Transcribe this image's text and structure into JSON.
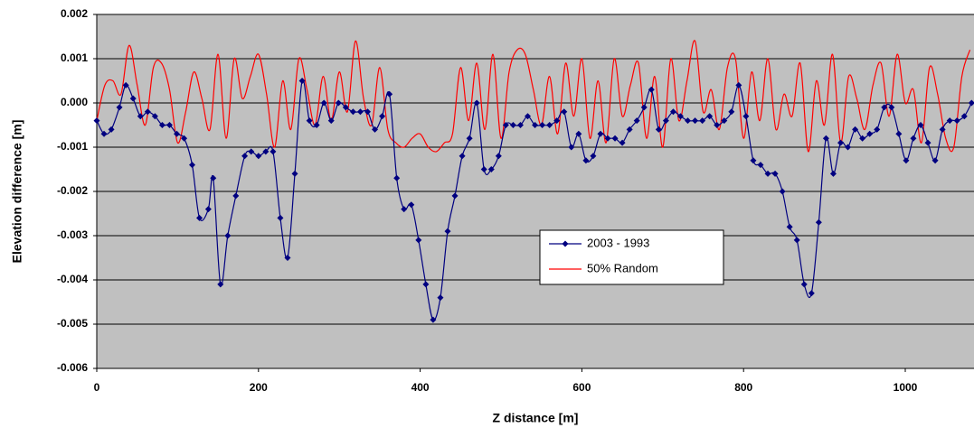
{
  "chart_data": {
    "type": "line",
    "xlabel": "Z distance [m]",
    "ylabel": "Elevation difference [m]",
    "xlim": [
      0,
      1085
    ],
    "xticks": [
      0,
      200,
      400,
      600,
      800,
      1000
    ],
    "ylim": [
      -0.006,
      0.002
    ],
    "yticks": [
      0.002,
      0.001,
      {
        "value": 0,
        "label": "0.000"
      },
      -0.001,
      -0.002,
      -0.003,
      -0.004,
      -0.005,
      -0.006
    ],
    "grid": true,
    "legend": "center",
    "series": [
      {
        "name": "2003 - 1993",
        "color": "#000080",
        "marker": "diamond",
        "x": [
          0,
          9,
          18,
          28,
          36,
          45,
          54,
          63,
          72,
          81,
          90,
          99,
          108,
          118,
          127,
          138,
          144,
          153,
          162,
          172,
          183,
          191,
          200,
          209,
          218,
          227,
          236,
          245,
          254,
          263,
          272,
          281,
          290,
          299,
          308,
          317,
          326,
          335,
          344,
          353,
          362,
          371,
          380,
          389,
          398,
          407,
          416,
          425,
          434,
          443,
          452,
          461,
          470,
          479,
          488,
          497,
          506,
          515,
          524,
          533,
          542,
          551,
          560,
          569,
          578,
          587,
          596,
          605,
          614,
          623,
          632,
          641,
          650,
          659,
          668,
          677,
          686,
          695,
          704,
          713,
          722,
          731,
          740,
          749,
          758,
          767,
          776,
          785,
          794,
          803,
          812,
          821,
          830,
          839,
          848,
          857,
          866,
          875,
          884,
          893,
          902,
          911,
          920,
          929,
          938,
          947,
          956,
          965,
          974,
          983,
          992,
          1001,
          1010,
          1019,
          1028,
          1037,
          1046,
          1055,
          1064,
          1073,
          1082
        ],
        "values": [
          -0.0004,
          -0.0007,
          -0.0006,
          -0.0001,
          0.0004,
          0.0001,
          -0.0003,
          -0.0002,
          -0.0003,
          -0.0005,
          -0.0005,
          -0.0007,
          -0.0008,
          -0.0014,
          -0.0026,
          -0.0024,
          -0.0017,
          -0.0041,
          -0.003,
          -0.0021,
          -0.0012,
          -0.0011,
          -0.0012,
          -0.0011,
          -0.0011,
          -0.0026,
          -0.0035,
          -0.0016,
          0.0005,
          -0.0004,
          -0.0005,
          0,
          -0.0004,
          0,
          -0.0001,
          -0.0002,
          -0.0002,
          -0.0002,
          -0.0006,
          -0.0003,
          0.0002,
          -0.0017,
          -0.0024,
          -0.0023,
          -0.0031,
          -0.0041,
          -0.0049,
          -0.0044,
          -0.0029,
          -0.0021,
          -0.0012,
          -0.0008,
          0,
          -0.0015,
          -0.0015,
          -0.0012,
          -0.0005,
          -0.0005,
          -0.0005,
          -0.0003,
          -0.0005,
          -0.0005,
          -0.0005,
          -0.0004,
          -0.0002,
          -0.001,
          -0.0007,
          -0.0013,
          -0.0012,
          -0.0007,
          -0.0008,
          -0.0008,
          -0.0009,
          -0.0006,
          -0.0004,
          -0.0001,
          0.0003,
          -0.0006,
          -0.0004,
          -0.0002,
          -0.0003,
          -0.0004,
          -0.0004,
          -0.0004,
          -0.0003,
          -0.0005,
          -0.0004,
          -0.0002,
          0.0004,
          -0.0003,
          -0.0013,
          -0.0014,
          -0.0016,
          -0.0016,
          -0.002,
          -0.0028,
          -0.0031,
          -0.0041,
          -0.0043,
          -0.0027,
          -0.0008,
          -0.0016,
          -0.0009,
          -0.001,
          -0.0006,
          -0.0008,
          -0.0007,
          -0.0006,
          -0.0001,
          -0.0001,
          -0.0007,
          -0.0013,
          -0.0008,
          -0.0005,
          -0.0009,
          -0.0013,
          -0.0006,
          -0.0004,
          -0.0004,
          -0.0003,
          0
        ]
      },
      {
        "name": "50% Random",
        "color": "#ff0000",
        "marker": "none",
        "x": [
          0,
          10,
          20,
          30,
          40,
          50,
          60,
          70,
          80,
          90,
          100,
          110,
          120,
          130,
          140,
          150,
          160,
          170,
          180,
          190,
          200,
          210,
          220,
          230,
          240,
          250,
          260,
          270,
          280,
          290,
          300,
          310,
          320,
          330,
          340,
          350,
          360,
          370,
          380,
          390,
          400,
          410,
          420,
          430,
          440,
          450,
          460,
          470,
          480,
          490,
          500,
          510,
          520,
          530,
          540,
          550,
          560,
          570,
          580,
          590,
          600,
          610,
          620,
          630,
          640,
          650,
          660,
          670,
          680,
          690,
          700,
          710,
          720,
          730,
          740,
          750,
          760,
          770,
          780,
          790,
          800,
          810,
          820,
          830,
          840,
          850,
          860,
          870,
          880,
          890,
          900,
          910,
          920,
          930,
          940,
          950,
          960,
          970,
          980,
          990,
          1000,
          1010,
          1020,
          1030,
          1040,
          1050,
          1060,
          1070,
          1080
        ],
        "values": [
          -0.0004,
          0.0004,
          0.0005,
          0.0002,
          0.0013,
          0.0004,
          -0.0005,
          0.0008,
          0.0009,
          0.0003,
          -0.0009,
          -0.0002,
          0.0007,
          0.0001,
          -0.0006,
          0.0011,
          -0.0008,
          0.001,
          0.0001,
          0.0006,
          0.0011,
          0.0002,
          -0.001,
          0.0005,
          -0.0006,
          0.001,
          0.0003,
          -0.0005,
          0.0006,
          -0.0004,
          0.0007,
          -0.0002,
          0.0014,
          0.0001,
          -0.0005,
          0.0008,
          -0.0006,
          -0.0009,
          -0.001,
          -0.0008,
          -0.0007,
          -0.001,
          -0.0011,
          -0.0009,
          -0.0007,
          0.0008,
          -0.0004,
          0.0009,
          -0.0006,
          0.0011,
          -0.0008,
          0.0007,
          0.0012,
          0.0011,
          0.0003,
          -0.0005,
          0.0006,
          -0.0007,
          0.0009,
          -0.0003,
          0.001,
          -0.0008,
          0.0005,
          -0.0009,
          0.001,
          -0.0003,
          0.0004,
          0.0009,
          -0.0008,
          0.0006,
          -0.001,
          0.001,
          -0.0004,
          0.0005,
          0.0014,
          -0.0002,
          0.0003,
          -0.0006,
          0.0008,
          0.001,
          -0.0008,
          0.0007,
          -0.0004,
          0.001,
          -0.0006,
          0.0002,
          -0.0003,
          0.0009,
          -0.0011,
          0.0005,
          -0.0005,
          0.0011,
          -0.0009,
          0.0006,
          0.0001,
          -0.0006,
          0.0004,
          0.0009,
          -0.0003,
          0.0011,
          0,
          0.0003,
          -0.0009,
          0.0008,
          0.0002,
          -0.0008,
          -0.001,
          0.0006,
          0.0012
        ]
      }
    ]
  }
}
